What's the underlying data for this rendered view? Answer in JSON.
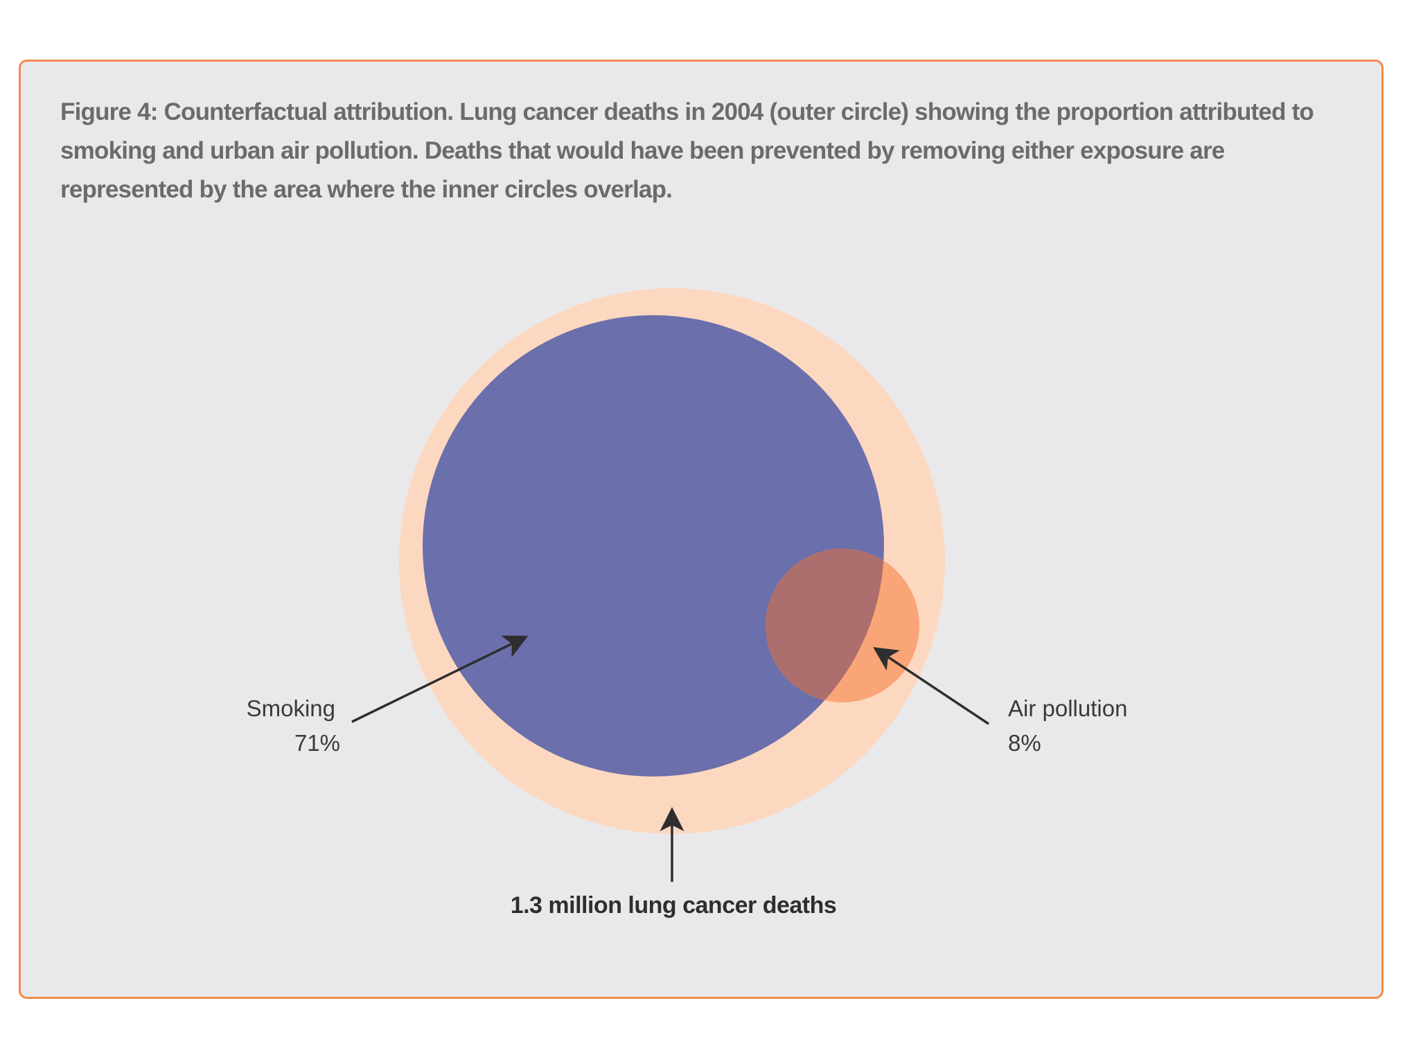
{
  "caption": "Figure 4: Counterfactual attribution. Lung cancer deaths in 2004 (outer circle) showing the proportion attributed to smoking and urban air pollution. Deaths that would have been prevented by removing either exposure are represented by the area where the inner circles overlap.",
  "labels": {
    "smoking_name": "Smoking",
    "smoking_value": "71%",
    "air_name": "Air pollution",
    "air_value": "8%",
    "total": "1.3 million lung cancer deaths"
  },
  "colors": {
    "outer_circle": "#fdd8c0",
    "smoking_circle": "#6b6fab",
    "air_circle": "#f9a577",
    "overlap": "#ad6f6d",
    "border": "#f08a4b",
    "background": "#e9e9eb"
  }
}
